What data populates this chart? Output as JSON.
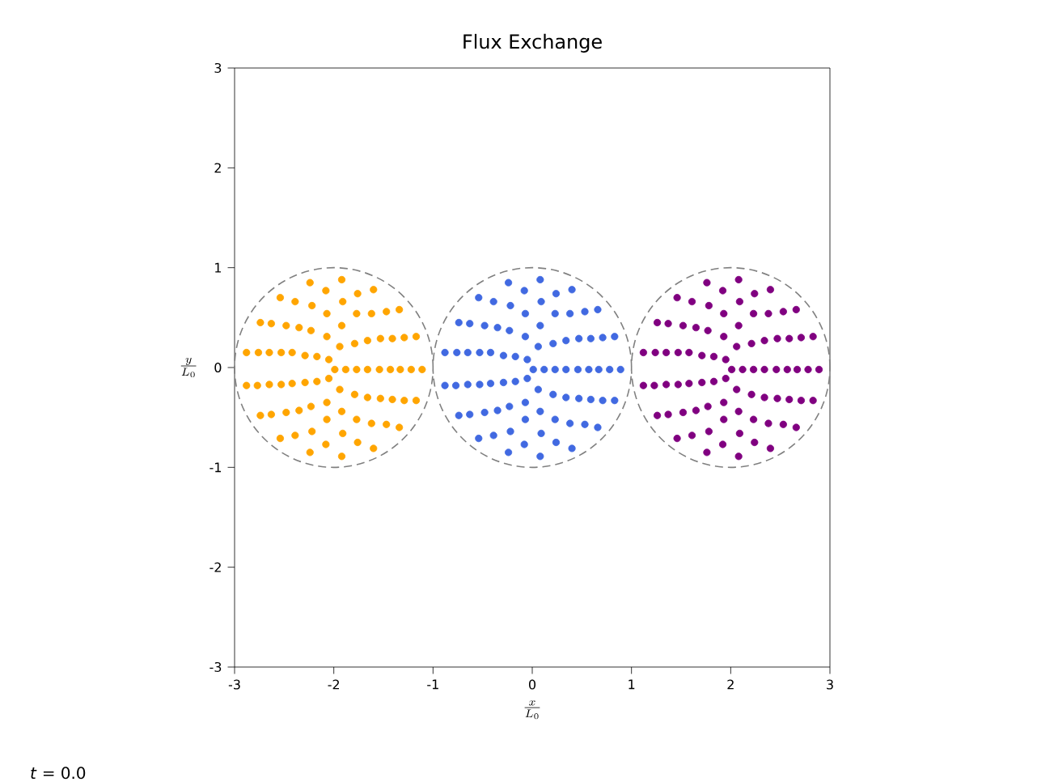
{
  "chart_data": {
    "type": "scatter",
    "title": "Flux Exchange",
    "xlabel": "\\frac{x}{L_0}",
    "ylabel": "\\frac{y}{L_0}",
    "annotations": [
      "*t* = 0.0"
    ],
    "xlim": [
      -3,
      3
    ],
    "ylim": [
      -3,
      3
    ],
    "xticks": [
      -3,
      -2,
      -1,
      0,
      1,
      2,
      3
    ],
    "yticks": [
      -3,
      -2,
      -1,
      0,
      1,
      2,
      3
    ],
    "marker": "circle",
    "series": [
      {
        "color": "#ffa500",
        "x": [
          -2.24,
          -1.92,
          -2.54,
          -2.39,
          -2.08,
          -1.76,
          -1.6,
          -2.22,
          -1.91,
          -2.07,
          -1.77,
          -1.62,
          -1.47,
          -1.34,
          -2.74,
          -2.63,
          -2.48,
          -2.35,
          -2.23,
          -1.92,
          -2.07,
          -1.79,
          -1.66,
          -1.53,
          -1.41,
          -1.29,
          -1.17,
          -1.94,
          -2.88,
          -2.76,
          -2.65,
          -2.53,
          -2.42,
          -2.29,
          -2.17,
          -2.05,
          -1.99,
          -1.88,
          -1.77,
          -1.66,
          -1.54,
          -1.43,
          -1.33,
          -1.22,
          -1.11,
          -2.88,
          -2.77,
          -2.65,
          -2.53,
          -2.42,
          -2.29,
          -2.17,
          -2.05,
          -1.94,
          -1.79,
          -1.66,
          -1.53,
          -1.41,
          -1.29,
          -1.17,
          -2.07,
          -1.92,
          -2.74,
          -2.63,
          -2.48,
          -2.35,
          -2.23,
          -2.07,
          -1.77,
          -1.62,
          -1.47,
          -1.34,
          -2.22,
          -1.91,
          -2.54,
          -2.39,
          -2.08,
          -1.76,
          -1.6,
          -2.24,
          -1.92
        ],
        "values": [
          0.85,
          0.88,
          0.7,
          0.66,
          0.77,
          0.74,
          0.78,
          0.62,
          0.66,
          0.54,
          0.54,
          0.54,
          0.56,
          0.58,
          0.45,
          0.44,
          0.42,
          0.4,
          0.37,
          0.42,
          0.31,
          0.24,
          0.27,
          0.29,
          0.29,
          0.3,
          0.31,
          0.21,
          0.15,
          0.15,
          0.15,
          0.15,
          0.15,
          0.12,
          0.11,
          0.08,
          -0.02,
          -0.02,
          -0.02,
          -0.02,
          -0.02,
          -0.02,
          -0.02,
          -0.02,
          -0.02,
          -0.18,
          -0.18,
          -0.17,
          -0.17,
          -0.16,
          -0.15,
          -0.14,
          -0.11,
          -0.22,
          -0.27,
          -0.3,
          -0.31,
          -0.32,
          -0.33,
          -0.33,
          -0.35,
          -0.44,
          -0.48,
          -0.47,
          -0.45,
          -0.43,
          -0.39,
          -0.52,
          -0.52,
          -0.56,
          -0.57,
          -0.6,
          -0.64,
          -0.66,
          -0.71,
          -0.68,
          -0.77,
          -0.75,
          -0.81,
          -0.85,
          -0.89
        ]
      },
      {
        "color": "#4169e1",
        "x": [
          -0.24,
          0.08,
          -0.54,
          -0.39,
          -0.08,
          0.24,
          0.4,
          -0.22,
          0.09,
          -0.07,
          0.23,
          0.38,
          0.53,
          0.66,
          -0.74,
          -0.63,
          -0.48,
          -0.35,
          -0.23,
          0.08,
          -0.07,
          0.21,
          0.34,
          0.47,
          0.59,
          0.71,
          0.83,
          0.06,
          -0.88,
          -0.76,
          -0.65,
          -0.53,
          -0.42,
          -0.29,
          -0.17,
          -0.05,
          0.01,
          0.12,
          0.23,
          0.34,
          0.46,
          0.57,
          0.67,
          0.78,
          0.89,
          -0.88,
          -0.77,
          -0.65,
          -0.53,
          -0.42,
          -0.29,
          -0.17,
          -0.05,
          0.06,
          0.21,
          0.34,
          0.47,
          0.59,
          0.71,
          0.83,
          -0.07,
          0.08,
          -0.74,
          -0.63,
          -0.48,
          -0.35,
          -0.23,
          -0.07,
          0.23,
          0.38,
          0.53,
          0.66,
          -0.22,
          0.09,
          -0.54,
          -0.39,
          -0.08,
          0.24,
          0.4,
          -0.24,
          0.08
        ],
        "values": [
          0.85,
          0.88,
          0.7,
          0.66,
          0.77,
          0.74,
          0.78,
          0.62,
          0.66,
          0.54,
          0.54,
          0.54,
          0.56,
          0.58,
          0.45,
          0.44,
          0.42,
          0.4,
          0.37,
          0.42,
          0.31,
          0.24,
          0.27,
          0.29,
          0.29,
          0.3,
          0.31,
          0.21,
          0.15,
          0.15,
          0.15,
          0.15,
          0.15,
          0.12,
          0.11,
          0.08,
          -0.02,
          -0.02,
          -0.02,
          -0.02,
          -0.02,
          -0.02,
          -0.02,
          -0.02,
          -0.02,
          -0.18,
          -0.18,
          -0.17,
          -0.17,
          -0.16,
          -0.15,
          -0.14,
          -0.11,
          -0.22,
          -0.27,
          -0.3,
          -0.31,
          -0.32,
          -0.33,
          -0.33,
          -0.35,
          -0.44,
          -0.48,
          -0.47,
          -0.45,
          -0.43,
          -0.39,
          -0.52,
          -0.52,
          -0.56,
          -0.57,
          -0.6,
          -0.64,
          -0.66,
          -0.71,
          -0.68,
          -0.77,
          -0.75,
          -0.81,
          -0.85,
          -0.89
        ]
      },
      {
        "color": "#800080",
        "x": [
          1.76,
          2.08,
          1.46,
          1.61,
          1.92,
          2.24,
          2.4,
          1.78,
          2.09,
          1.93,
          2.23,
          2.38,
          2.53,
          2.66,
          1.26,
          1.37,
          1.52,
          1.65,
          1.77,
          2.08,
          1.93,
          2.21,
          2.34,
          2.47,
          2.59,
          2.71,
          2.83,
          2.06,
          1.12,
          1.24,
          1.35,
          1.47,
          1.58,
          1.71,
          1.83,
          1.95,
          2.01,
          2.12,
          2.23,
          2.34,
          2.46,
          2.57,
          2.67,
          2.78,
          2.89,
          1.12,
          1.23,
          1.35,
          1.47,
          1.58,
          1.71,
          1.83,
          1.95,
          2.06,
          2.21,
          2.34,
          2.47,
          2.59,
          2.71,
          2.83,
          1.93,
          2.08,
          1.26,
          1.37,
          1.52,
          1.65,
          1.77,
          1.93,
          2.23,
          2.38,
          2.53,
          2.66,
          1.78,
          2.09,
          1.46,
          1.61,
          1.92,
          2.24,
          2.4,
          1.76,
          2.08
        ],
        "values": [
          0.85,
          0.88,
          0.7,
          0.66,
          0.77,
          0.74,
          0.78,
          0.62,
          0.66,
          0.54,
          0.54,
          0.54,
          0.56,
          0.58,
          0.45,
          0.44,
          0.42,
          0.4,
          0.37,
          0.42,
          0.31,
          0.24,
          0.27,
          0.29,
          0.29,
          0.3,
          0.31,
          0.21,
          0.15,
          0.15,
          0.15,
          0.15,
          0.15,
          0.12,
          0.11,
          0.08,
          -0.02,
          -0.02,
          -0.02,
          -0.02,
          -0.02,
          -0.02,
          -0.02,
          -0.02,
          -0.02,
          -0.18,
          -0.18,
          -0.17,
          -0.17,
          -0.16,
          -0.15,
          -0.14,
          -0.11,
          -0.22,
          -0.27,
          -0.3,
          -0.31,
          -0.32,
          -0.33,
          -0.33,
          -0.35,
          -0.44,
          -0.48,
          -0.47,
          -0.45,
          -0.43,
          -0.39,
          -0.52,
          -0.52,
          -0.56,
          -0.57,
          -0.6,
          -0.64,
          -0.66,
          -0.71,
          -0.68,
          -0.77,
          -0.75,
          -0.81,
          -0.85,
          -0.89
        ]
      }
    ]
  }
}
